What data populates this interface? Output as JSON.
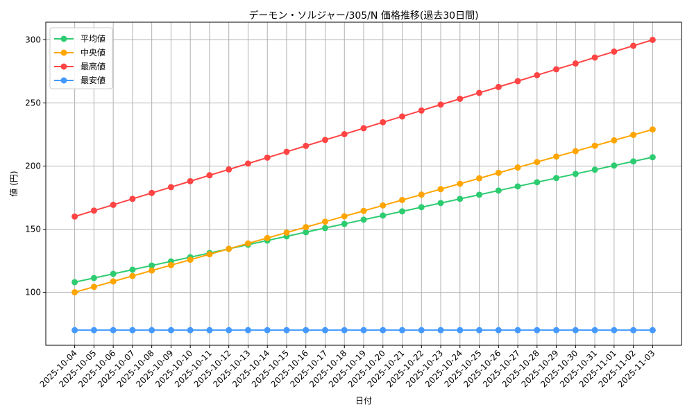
{
  "chart_data": {
    "type": "line",
    "title": "デーモン・ソルジャー/305/N 価格推移(過去30日間)",
    "xlabel": "日付",
    "ylabel": "値 (円)",
    "ylim": [
      58,
      314
    ],
    "yticks": [
      100,
      150,
      200,
      250,
      300
    ],
    "grid": true,
    "legend_position": "top-left",
    "x": [
      "2025-10-04",
      "2025-10-05",
      "2025-10-06",
      "2025-10-07",
      "2025-10-08",
      "2025-10-09",
      "2025-10-10",
      "2025-10-11",
      "2025-10-12",
      "2025-10-13",
      "2025-10-14",
      "2025-10-15",
      "2025-10-16",
      "2025-10-17",
      "2025-10-18",
      "2025-10-19",
      "2025-10-20",
      "2025-10-21",
      "2025-10-22",
      "2025-10-23",
      "2025-10-24",
      "2025-10-25",
      "2025-10-26",
      "2025-10-27",
      "2025-10-28",
      "2025-10-29",
      "2025-10-30",
      "2025-10-31",
      "2025-11-01",
      "2025-11-02",
      "2025-11-03"
    ],
    "series": [
      {
        "name": "平均値",
        "color": "#2ecc71",
        "values": [
          108,
          111.3,
          114.6,
          117.9,
          121.2,
          124.5,
          127.8,
          131.1,
          134.4,
          137.7,
          141,
          144.3,
          147.6,
          150.9,
          154.2,
          157.5,
          160.8,
          164.1,
          167.4,
          170.7,
          174,
          177.3,
          180.6,
          183.9,
          187.2,
          190.5,
          193.8,
          197.1,
          200.4,
          203.7,
          207
        ]
      },
      {
        "name": "中央値",
        "color": "#ffa500",
        "values": [
          100,
          104.3,
          108.6,
          112.9,
          117.2,
          121.5,
          125.8,
          130.1,
          134.4,
          138.7,
          143,
          147.3,
          151.6,
          155.9,
          160.2,
          164.5,
          168.8,
          173.1,
          177.4,
          181.7,
          186,
          190.3,
          194.6,
          198.9,
          203.2,
          207.5,
          211.8,
          216.1,
          220.4,
          224.7,
          229
        ]
      },
      {
        "name": "最高値",
        "color": "#ff4444",
        "values": [
          160,
          164.7,
          169.3,
          174,
          178.7,
          183.3,
          188,
          192.7,
          197.3,
          202,
          206.7,
          211.3,
          216,
          220.7,
          225.3,
          230,
          234.7,
          239.3,
          244,
          248.7,
          253.3,
          258,
          262.7,
          267.3,
          272,
          276.7,
          281.3,
          286,
          290.7,
          295.3,
          300
        ]
      },
      {
        "name": "最安値",
        "color": "#4499ff",
        "values": [
          70,
          70,
          70,
          70,
          70,
          70,
          70,
          70,
          70,
          70,
          70,
          70,
          70,
          70,
          70,
          70,
          70,
          70,
          70,
          70,
          70,
          70,
          70,
          70,
          70,
          70,
          70,
          70,
          70,
          70,
          70
        ]
      }
    ]
  }
}
